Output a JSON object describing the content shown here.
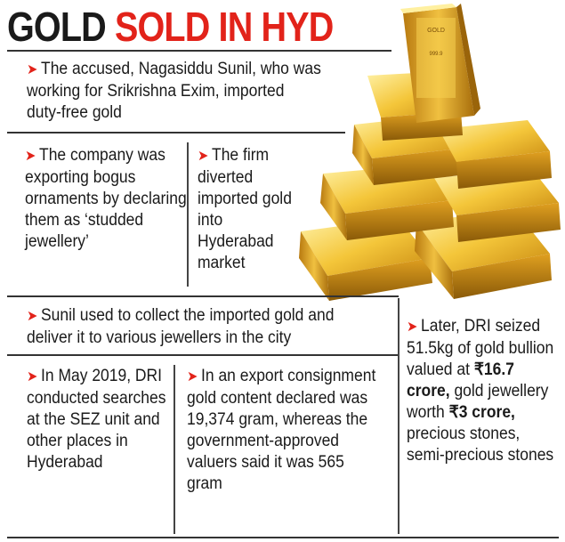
{
  "headline": {
    "part1": "GOLD",
    "part2": "SOLD IN HYD"
  },
  "blocks": {
    "accused": "The accused, Nagasiddu Sunil, who was working for Srikrishna Exim, imported duty-free gold",
    "company": "The company was exporting bogus ornaments by declaring them as ‘studded jewellery’",
    "firm": "The firm diverted imported gold into Hyderabad market",
    "sunil": "Sunil used to collect the imported gold and deliver it to various jewellers in the city",
    "later_pre": "Later, DRI seized 51.5kg of gold bullion valued at ",
    "later_b1": "₹16.7 crore,",
    "later_mid": " gold jewellery worth ",
    "later_b2": "₹3 crore,",
    "later_post": " precious stones, semi-precious stones",
    "may2019": "In May 2019, DRI conducted searches at the SEZ unit and other places in Hyderabad",
    "export": "In an export consignment gold content declared was 19,374 gram, whereas the government-approved valuers said it was 565 gram"
  },
  "bar_stamp": {
    "line1": "GOLD",
    "line2": "999.9"
  },
  "colors": {
    "accent": "#e2231a",
    "text": "#1a1a1a",
    "gold": "#e0a82a"
  }
}
